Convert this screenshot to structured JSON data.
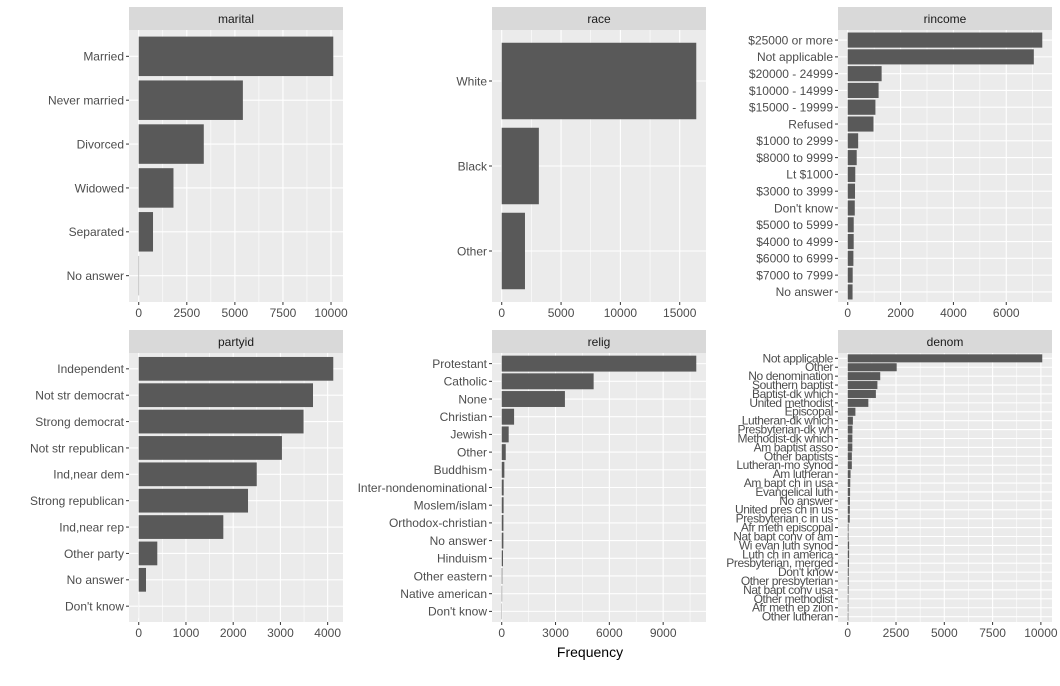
{
  "chart_data": {
    "type": "bar",
    "orientation": "horizontal",
    "layout": "facet_wrap 2x3, free scales",
    "xlabel": "Frequency",
    "ylabel": "",
    "colors": {
      "bar": "#595959",
      "panel_background": "#ebebeb",
      "grid": "#ffffff",
      "strip_background": "#d9d9d9",
      "page_background": "#ffffff"
    },
    "panels": [
      {
        "title": "marital",
        "categories": [
          "Married",
          "Never married",
          "Divorced",
          "Widowed",
          "Separated",
          "No answer"
        ],
        "values": [
          10117,
          5416,
          3383,
          1807,
          743,
          17
        ],
        "xticks": [
          0,
          2500,
          5000,
          7500,
          10000
        ],
        "xtick_labels": [
          "0",
          "2500",
          "5000",
          "7500",
          "10000"
        ],
        "xlim": [
          -506,
          10623
        ]
      },
      {
        "title": "race",
        "categories": [
          "White",
          "Black",
          "Other"
        ],
        "values": [
          16395,
          3129,
          1959
        ],
        "xticks": [
          0,
          5000,
          10000,
          15000
        ],
        "xtick_labels": [
          "0",
          "5000",
          "10000",
          "15000"
        ],
        "xlim": [
          -820,
          17215
        ]
      },
      {
        "title": "rincome",
        "categories": [
          "$25000 or more",
          "Not applicable",
          "$20000 - 24999",
          "$10000 - 14999",
          "$15000 - 19999",
          "Refused",
          "$1000 to 2999",
          "$8000 to 9999",
          "Lt $1000",
          "$3000 to 3999",
          "Don't know",
          "$5000 to 5999",
          "$4000 to 4999",
          "$6000 to 6999",
          "$7000 to 7999",
          "No answer"
        ],
        "values": [
          7363,
          7043,
          1283,
          1168,
          1048,
          975,
          395,
          340,
          286,
          276,
          267,
          227,
          226,
          215,
          188,
          183
        ],
        "xticks": [
          0,
          2000,
          4000,
          6000
        ],
        "xtick_labels": [
          "0",
          "2000",
          "4000",
          "6000"
        ],
        "xlim": [
          -368,
          7731
        ]
      },
      {
        "title": "partyid",
        "categories": [
          "Independent",
          "Not str democrat",
          "Strong democrat",
          "Not str republican",
          "Ind,near dem",
          "Strong republican",
          "Ind,near rep",
          "Other party",
          "No answer",
          "Don't know"
        ],
        "values": [
          4119,
          3690,
          3490,
          3032,
          2499,
          2314,
          1791,
          393,
          154,
          1
        ],
        "xticks": [
          0,
          1000,
          2000,
          3000,
          4000
        ],
        "xtick_labels": [
          "0",
          "1000",
          "2000",
          "3000",
          "4000"
        ],
        "xlim": [
          -206,
          4325
        ]
      },
      {
        "title": "relig",
        "categories": [
          "Protestant",
          "Catholic",
          "None",
          "Christian",
          "Jewish",
          "Other",
          "Buddhism",
          "Inter-nondenominational",
          "Moslem/islam",
          "Orthodox-christian",
          "No answer",
          "Hinduism",
          "Other eastern",
          "Native american",
          "Don't know"
        ],
        "values": [
          10846,
          5124,
          3523,
          689,
          388,
          224,
          147,
          109,
          104,
          95,
          93,
          71,
          32,
          23,
          15
        ],
        "xticks": [
          0,
          3000,
          6000,
          9000
        ],
        "xtick_labels": [
          "0",
          "3000",
          "6000",
          "9000"
        ],
        "xlim": [
          -542,
          11388
        ]
      },
      {
        "title": "denom",
        "categories": [
          "Not applicable",
          "Other",
          "No denomination",
          "Southern baptist",
          "Baptist-dk which",
          "United methodist",
          "Episcopal",
          "Lutheran-dk which",
          "Presbyterian-dk wh",
          "Methodist-dk which",
          "Am baptist asso",
          "Other baptists",
          "Lutheran-mo synod",
          "Am lutheran",
          "Am bapt ch in usa",
          "Evangelical luth",
          "No answer",
          "United pres ch in us",
          "Presbyterian c in us",
          "Afr meth episcopal",
          "Nat bapt conv of am",
          "Wi evan luth synod",
          "Luth ch in america",
          "Presbyterian, merged",
          "Don't know",
          "Other presbyterian",
          "Nat bapt conv usa",
          "Other methodist",
          "Afr meth ep zion",
          "Other lutheran"
        ],
        "values": [
          10072,
          2534,
          1683,
          1536,
          1457,
          1067,
          397,
          267,
          244,
          239,
          237,
          213,
          212,
          146,
          130,
          122,
          117,
          110,
          104,
          40,
          40,
          71,
          71,
          67,
          52,
          47,
          40,
          33,
          32,
          30
        ],
        "xticks": [
          0,
          2500,
          5000,
          7500,
          10000
        ],
        "xtick_labels": [
          "0",
          "2500",
          "5000",
          "7500",
          "10000"
        ],
        "xlim": [
          -504,
          10576
        ]
      }
    ]
  }
}
